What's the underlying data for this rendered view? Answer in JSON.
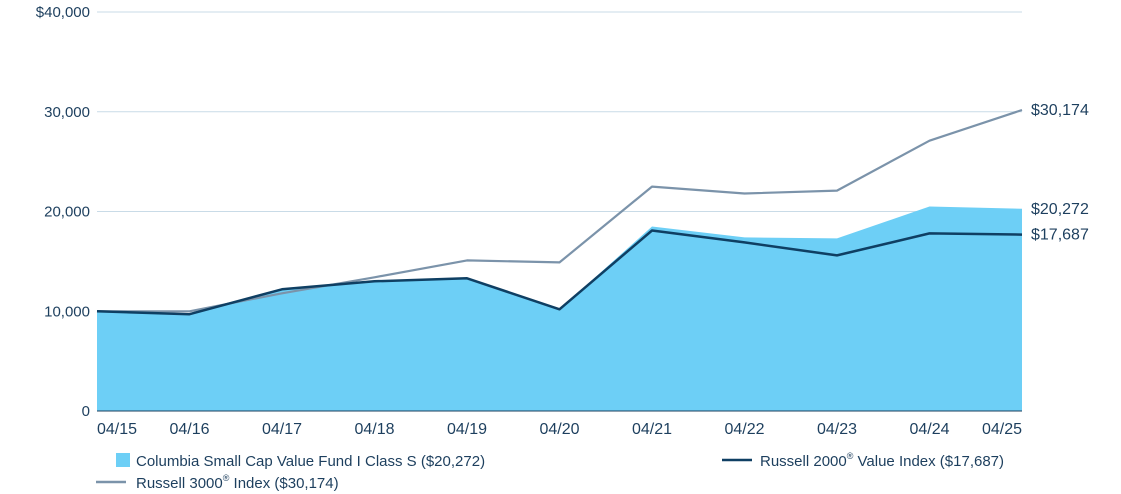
{
  "chart_data": {
    "type": "area",
    "title": "",
    "xlabel": "",
    "ylabel": "",
    "categories": [
      "04/15",
      "04/16",
      "04/17",
      "04/18",
      "04/19",
      "04/20",
      "04/21",
      "04/22",
      "04/23",
      "04/24",
      "04/25"
    ],
    "ylim": [
      0,
      40000
    ],
    "y_ticks": [
      {
        "value": 0,
        "label": "0"
      },
      {
        "value": 10000,
        "label": "10,000"
      },
      {
        "value": 20000,
        "label": "20,000"
      },
      {
        "value": 30000,
        "label": "30,000"
      },
      {
        "value": 40000,
        "label": "$40,000"
      }
    ],
    "grid": "horizontal",
    "legend_position": "bottom",
    "series": [
      {
        "name": "Columbia Small Cap Value Fund I Class S ($20,272)",
        "style": "area",
        "color": "#6dcff6",
        "end_label": "$20,272",
        "values": [
          10000,
          9700,
          12100,
          13100,
          13300,
          10200,
          18500,
          17400,
          17300,
          20500,
          20272
        ]
      },
      {
        "name": "Russell 2000® Value Index ($17,687)",
        "legend_main": "Russell 2000",
        "legend_rest": " Value Index ($17,687)",
        "style": "line",
        "color": "#0f3f63",
        "end_label": "$17,687",
        "values": [
          10000,
          9700,
          12200,
          13000,
          13300,
          10200,
          18100,
          16900,
          15600,
          17800,
          17687
        ]
      },
      {
        "name": "Russell 3000® Index ($30,174)",
        "legend_main": "Russell 3000",
        "legend_rest": " Index ($30,174)",
        "style": "line",
        "color": "#7b93aa",
        "end_label": "$30,174",
        "values": [
          10000,
          10000,
          11800,
          13400,
          15100,
          14900,
          22500,
          21800,
          22100,
          27100,
          30174
        ]
      }
    ],
    "legend": {
      "reg_mark": "®"
    }
  }
}
